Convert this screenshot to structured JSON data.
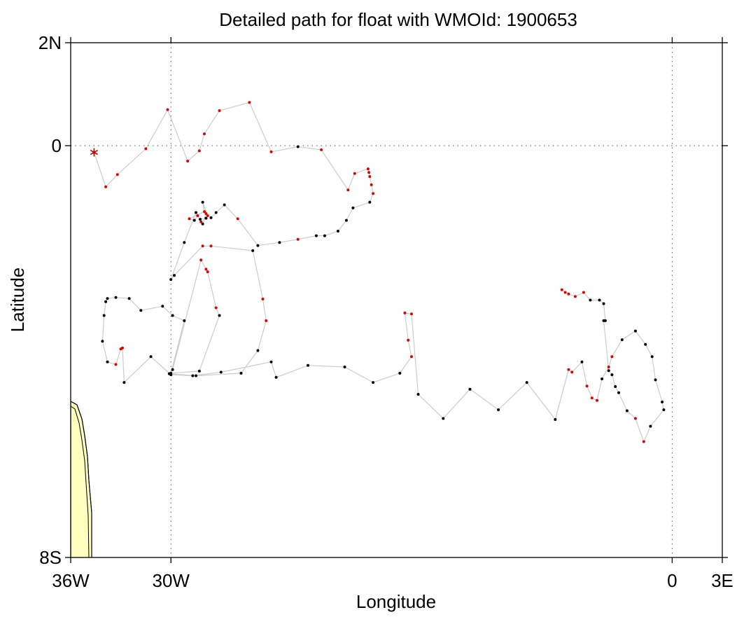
{
  "chart_data": {
    "type": "line",
    "title": "Detailed path for float with WMOId: 1900653",
    "xlabel": "Longitude",
    "ylabel": "Latitude",
    "xlim": [
      -36,
      3
    ],
    "ylim": [
      -8,
      2
    ],
    "x_ticks": [
      {
        "value": -36,
        "label": "36W"
      },
      {
        "value": -30,
        "label": "30W"
      },
      {
        "value": 0,
        "label": "0"
      },
      {
        "value": 3,
        "label": "3E"
      }
    ],
    "y_ticks": [
      {
        "value": 2,
        "label": "2N"
      },
      {
        "value": 0,
        "label": "0"
      },
      {
        "value": -8,
        "label": "8S"
      }
    ],
    "grid_lines": {
      "x": [
        -30,
        0
      ],
      "y": [
        0
      ]
    },
    "colors": {
      "track": "#cccccc",
      "point_black": "#000000",
      "point_red": "#e00000",
      "start_marker": "#c00000",
      "land": "#ffffc0",
      "coast": "#000000",
      "grid": "#555555"
    },
    "start_marker": {
      "x": -34.6,
      "y": -0.13
    },
    "track": [
      {
        "x": -34.6,
        "y": -0.13,
        "c": "r"
      },
      {
        "x": -33.9,
        "y": -0.8,
        "c": "r"
      },
      {
        "x": -33.2,
        "y": -0.56,
        "c": "r"
      },
      {
        "x": -31.5,
        "y": -0.06,
        "c": "r"
      },
      {
        "x": -30.2,
        "y": 0.7,
        "c": "r"
      },
      {
        "x": -29.0,
        "y": -0.3,
        "c": "r"
      },
      {
        "x": -28.3,
        "y": -0.1,
        "c": "r"
      },
      {
        "x": -28.0,
        "y": 0.23,
        "c": "r"
      },
      {
        "x": -27.1,
        "y": 0.68,
        "c": "r"
      },
      {
        "x": -25.3,
        "y": 0.84,
        "c": "r"
      },
      {
        "x": -24.0,
        "y": -0.12,
        "c": "r"
      },
      {
        "x": -22.4,
        "y": -0.02,
        "c": "k"
      },
      {
        "x": -21.0,
        "y": -0.08,
        "c": "r"
      },
      {
        "x": -19.4,
        "y": -0.86,
        "c": "r"
      },
      {
        "x": -19.0,
        "y": -0.54,
        "c": "r"
      },
      {
        "x": -18.2,
        "y": -0.45,
        "c": "r"
      },
      {
        "x": -18.15,
        "y": -0.52,
        "c": "r"
      },
      {
        "x": -18.1,
        "y": -0.6,
        "c": "r"
      },
      {
        "x": -18.0,
        "y": -0.76,
        "c": "r"
      },
      {
        "x": -17.9,
        "y": -0.93,
        "c": "r"
      },
      {
        "x": -18.1,
        "y": -1.1,
        "c": "k"
      },
      {
        "x": -19.1,
        "y": -1.21,
        "c": "k"
      },
      {
        "x": -19.5,
        "y": -1.45,
        "c": "k"
      },
      {
        "x": -20.0,
        "y": -1.66,
        "c": "k"
      },
      {
        "x": -20.8,
        "y": -1.75,
        "c": "k"
      },
      {
        "x": -21.3,
        "y": -1.75,
        "c": "k"
      },
      {
        "x": -22.4,
        "y": -1.82,
        "c": "r"
      },
      {
        "x": -23.5,
        "y": -1.88,
        "c": "k"
      },
      {
        "x": -24.8,
        "y": -1.94,
        "c": "k"
      },
      {
        "x": -26.0,
        "y": -1.42,
        "c": "r"
      },
      {
        "x": -26.8,
        "y": -1.15,
        "c": "k"
      },
      {
        "x": -27.3,
        "y": -1.3,
        "c": "k"
      },
      {
        "x": -27.6,
        "y": -1.4,
        "c": "k"
      },
      {
        "x": -27.9,
        "y": -1.32,
        "c": "r"
      },
      {
        "x": -28.1,
        "y": -1.52,
        "c": "k"
      },
      {
        "x": -28.2,
        "y": -1.48,
        "c": "r"
      },
      {
        "x": -28.4,
        "y": -1.36,
        "c": "r"
      },
      {
        "x": -28.6,
        "y": -1.45,
        "c": "k"
      },
      {
        "x": -28.9,
        "y": -1.42,
        "c": "r"
      },
      {
        "x": -28.0,
        "y": -1.28,
        "c": "r"
      },
      {
        "x": -28.1,
        "y": -1.1,
        "c": "k"
      },
      {
        "x": -27.8,
        "y": -1.36,
        "c": "r"
      },
      {
        "x": -27.9,
        "y": -1.41,
        "c": "k"
      },
      {
        "x": -28.25,
        "y": -1.43,
        "c": "k"
      },
      {
        "x": -28.5,
        "y": -1.3,
        "c": "k"
      },
      {
        "x": -29.2,
        "y": -1.88,
        "c": "k"
      },
      {
        "x": -30.0,
        "y": -2.6,
        "c": "k"
      },
      {
        "x": -29.8,
        "y": -2.52,
        "c": "k"
      },
      {
        "x": -28.1,
        "y": -1.95,
        "c": "r"
      },
      {
        "x": -27.6,
        "y": -1.95,
        "c": "r"
      },
      {
        "x": -25.1,
        "y": -2.04,
        "c": "k"
      },
      {
        "x": -24.5,
        "y": -2.98,
        "c": "r"
      },
      {
        "x": -24.3,
        "y": -3.4,
        "c": "r"
      },
      {
        "x": -24.8,
        "y": -3.98,
        "c": "k"
      },
      {
        "x": -25.8,
        "y": -4.42,
        "c": "k"
      },
      {
        "x": -28.5,
        "y": -4.47,
        "c": "k"
      },
      {
        "x": -30.1,
        "y": -4.43,
        "c": "k"
      },
      {
        "x": -29.9,
        "y": -4.35,
        "c": "k"
      },
      {
        "x": -28.2,
        "y": -2.22,
        "c": "r"
      },
      {
        "x": -27.9,
        "y": -2.4,
        "c": "r"
      },
      {
        "x": -27.8,
        "y": -2.45,
        "c": "r"
      },
      {
        "x": -27.3,
        "y": -3.15,
        "c": "r"
      },
      {
        "x": -27.1,
        "y": -3.3,
        "c": "k"
      },
      {
        "x": -28.3,
        "y": -4.38,
        "c": "k"
      },
      {
        "x": -30.0,
        "y": -4.42,
        "c": "k"
      },
      {
        "x": -29.2,
        "y": -3.4,
        "c": "k"
      },
      {
        "x": -29.9,
        "y": -3.3,
        "c": "k"
      },
      {
        "x": -30.5,
        "y": -3.12,
        "c": "k"
      },
      {
        "x": -31.8,
        "y": -3.2,
        "c": "k"
      },
      {
        "x": -32.5,
        "y": -2.97,
        "c": "k"
      },
      {
        "x": -33.3,
        "y": -2.95,
        "c": "k"
      },
      {
        "x": -33.8,
        "y": -2.97,
        "c": "k"
      },
      {
        "x": -33.9,
        "y": -3.03,
        "c": "k"
      },
      {
        "x": -34.0,
        "y": -3.3,
        "c": "k"
      },
      {
        "x": -34.1,
        "y": -3.8,
        "c": "k"
      },
      {
        "x": -33.8,
        "y": -4.2,
        "c": "k"
      },
      {
        "x": -33.3,
        "y": -4.25,
        "c": "r"
      },
      {
        "x": -33.0,
        "y": -3.95,
        "c": "r"
      },
      {
        "x": -32.9,
        "y": -3.93,
        "c": "r"
      },
      {
        "x": -32.8,
        "y": -4.6,
        "c": "k"
      },
      {
        "x": -31.2,
        "y": -4.1,
        "c": "k"
      },
      {
        "x": -30.0,
        "y": -4.45,
        "c": "k"
      },
      {
        "x": -28.7,
        "y": -4.47,
        "c": "k"
      },
      {
        "x": -27.0,
        "y": -4.4,
        "c": "k"
      },
      {
        "x": -24.0,
        "y": -4.2,
        "c": "k"
      },
      {
        "x": -23.7,
        "y": -4.5,
        "c": "k"
      },
      {
        "x": -21.8,
        "y": -4.27,
        "c": "k"
      },
      {
        "x": -19.6,
        "y": -4.3,
        "c": "k"
      },
      {
        "x": -17.9,
        "y": -4.6,
        "c": "k"
      },
      {
        "x": -16.3,
        "y": -4.42,
        "c": "k"
      },
      {
        "x": -15.6,
        "y": -4.1,
        "c": "r"
      },
      {
        "x": -15.8,
        "y": -3.78,
        "c": "r"
      },
      {
        "x": -16.0,
        "y": -3.25,
        "c": "r"
      },
      {
        "x": -15.6,
        "y": -3.27,
        "c": "r"
      },
      {
        "x": -15.2,
        "y": -4.83,
        "c": "k"
      },
      {
        "x": -13.7,
        "y": -5.3,
        "c": "k"
      },
      {
        "x": -12.1,
        "y": -4.73,
        "c": "k"
      },
      {
        "x": -10.4,
        "y": -5.13,
        "c": "k"
      },
      {
        "x": -8.7,
        "y": -4.6,
        "c": "k"
      },
      {
        "x": -7.0,
        "y": -5.32,
        "c": "k"
      },
      {
        "x": -6.2,
        "y": -4.35,
        "c": "r"
      },
      {
        "x": -6.0,
        "y": -4.4,
        "c": "r"
      },
      {
        "x": -5.4,
        "y": -4.2,
        "c": "k"
      },
      {
        "x": -5.1,
        "y": -4.67,
        "c": "r"
      },
      {
        "x": -4.8,
        "y": -4.9,
        "c": "r"
      },
      {
        "x": -4.5,
        "y": -4.95,
        "c": "r"
      },
      {
        "x": -4.2,
        "y": -4.53,
        "c": "k"
      },
      {
        "x": -3.8,
        "y": -4.3,
        "c": "r"
      },
      {
        "x": -3.6,
        "y": -4.1,
        "c": "r"
      },
      {
        "x": -3.0,
        "y": -3.77,
        "c": "k"
      },
      {
        "x": -2.2,
        "y": -3.6,
        "c": "k"
      },
      {
        "x": -1.6,
        "y": -3.86,
        "c": "k"
      },
      {
        "x": -1.2,
        "y": -4.1,
        "c": "k"
      },
      {
        "x": -1.0,
        "y": -4.55,
        "c": "k"
      },
      {
        "x": -0.6,
        "y": -4.98,
        "c": "k"
      },
      {
        "x": -0.5,
        "y": -5.13,
        "c": "k"
      },
      {
        "x": -1.3,
        "y": -5.45,
        "c": "k"
      },
      {
        "x": -1.7,
        "y": -5.75,
        "c": "r"
      },
      {
        "x": -2.2,
        "y": -5.3,
        "c": "r"
      },
      {
        "x": -2.7,
        "y": -5.15,
        "c": "k"
      },
      {
        "x": -3.2,
        "y": -4.8,
        "c": "k"
      },
      {
        "x": -3.4,
        "y": -4.68,
        "c": "k"
      },
      {
        "x": -3.6,
        "y": -4.45,
        "c": "k"
      },
      {
        "x": -3.8,
        "y": -4.37,
        "c": "k"
      },
      {
        "x": -4.1,
        "y": -3.4,
        "c": "k"
      },
      {
        "x": -4.0,
        "y": -3.4,
        "c": "k"
      },
      {
        "x": -4.1,
        "y": -3.07,
        "c": "k"
      },
      {
        "x": -4.35,
        "y": -3.0,
        "c": "k"
      },
      {
        "x": -4.9,
        "y": -3.0,
        "c": "k"
      },
      {
        "x": -5.3,
        "y": -2.85,
        "c": "r"
      },
      {
        "x": -5.8,
        "y": -2.93,
        "c": "r"
      },
      {
        "x": -6.2,
        "y": -2.88,
        "c": "r"
      },
      {
        "x": -6.4,
        "y": -2.85,
        "c": "r"
      },
      {
        "x": -6.6,
        "y": -2.8,
        "c": "r"
      }
    ]
  }
}
